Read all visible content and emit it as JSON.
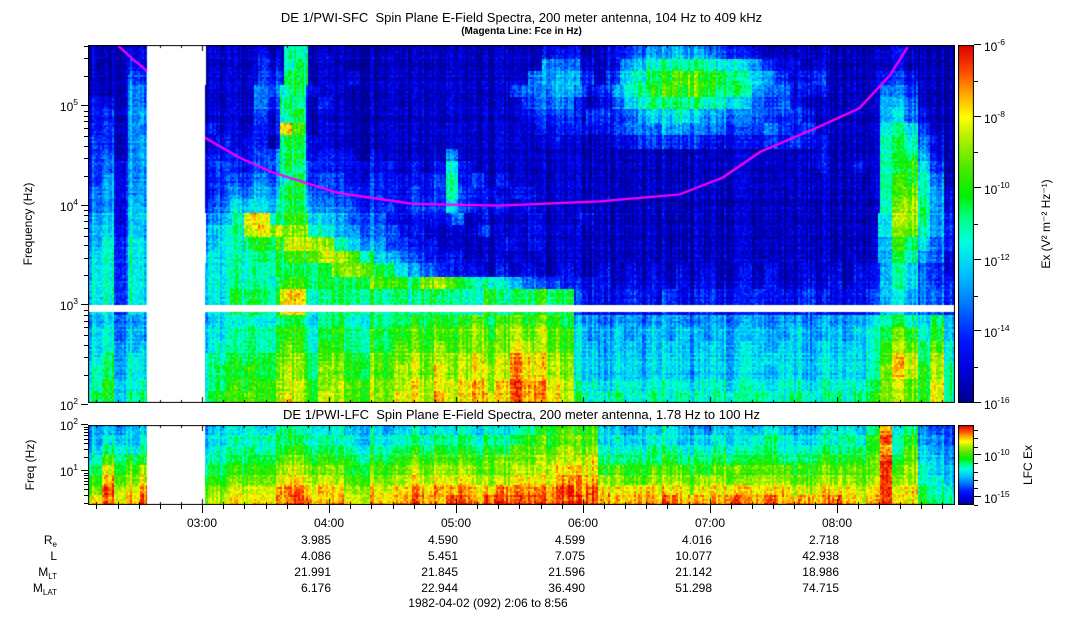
{
  "caption": "1982-04-02 (092) 2:06 to 8:56",
  "ephemeris": {
    "row_labels": [
      {
        "base": "R",
        "sub": "e"
      },
      {
        "base": "L",
        "sub": ""
      },
      {
        "base": "M",
        "sub": "LT"
      },
      {
        "base": "M",
        "sub": "LAT"
      }
    ],
    "columns": [
      {
        "time": "03:00",
        "values": [
          "",
          "",
          "",
          ""
        ]
      },
      {
        "time": "04:00",
        "values": [
          "3.985",
          "4.086",
          "21.991",
          "6.176"
        ]
      },
      {
        "time": "05:00",
        "values": [
          "4.590",
          "5.451",
          "21.845",
          "22.944"
        ]
      },
      {
        "time": "06:00",
        "values": [
          "4.599",
          "7.075",
          "21.596",
          "36.490"
        ]
      },
      {
        "time": "07:00",
        "values": [
          "4.016",
          "10.077",
          "21.142",
          "51.298"
        ]
      },
      {
        "time": "08:00",
        "values": [
          "2.718",
          "42.938",
          "18.986",
          "74.715"
        ]
      }
    ]
  },
  "colormap_stops": [
    [
      0.0,
      "#00008a"
    ],
    [
      0.1,
      "#0000e0"
    ],
    [
      0.18,
      "#0018ff"
    ],
    [
      0.27,
      "#0070ff"
    ],
    [
      0.36,
      "#00c0ff"
    ],
    [
      0.45,
      "#00ffe0"
    ],
    [
      0.52,
      "#00ff84"
    ],
    [
      0.58,
      "#00f000"
    ],
    [
      0.66,
      "#50e800"
    ],
    [
      0.74,
      "#b0f000"
    ],
    [
      0.8,
      "#ffff00"
    ],
    [
      0.87,
      "#ffa000"
    ],
    [
      0.93,
      "#ff4400"
    ],
    [
      1.0,
      "#e00000"
    ]
  ],
  "chart_data": [
    {
      "type": "heatmap",
      "title": "DE 1/PWI-SFC  Spin Plane E-Field Spectra, 200 meter antenna, 104 Hz to 409 kHz",
      "subtitle": "(Magenta Line: Fce in Hz)",
      "ylabel": "Frequency (Hz)",
      "xlabel": "",
      "x_range_hours": [
        2.1,
        8.9333
      ],
      "x_major_ticks_hours": [
        3,
        4,
        5,
        6,
        7,
        8
      ],
      "x_tick_labels": [
        "03:00",
        "04:00",
        "05:00",
        "06:00",
        "07:00",
        "08:00"
      ],
      "x_minor_step_minutes": 10,
      "y_log10_range_hz": [
        5.612,
        2.017
      ],
      "y_tick_exponents": [
        5,
        4,
        3,
        2
      ],
      "value_log10_range": [
        -6,
        -16
      ],
      "colorbar_label": "Ex (V² m⁻² Hz⁻¹)",
      "colorbar_tick_exponents": [
        -6,
        -8,
        -10,
        -12,
        -14,
        -16
      ],
      "colorbar_minor_exponents": [
        -7,
        -9,
        -11,
        -13,
        -15
      ],
      "data_gap_hours": [
        2.565,
        3.022
      ],
      "band_gap_log10_hz": [
        3.001,
        2.931
      ],
      "fce_line": {
        "legend": "Fce in Hz",
        "color": "#ff00ff",
        "segments_hour_hz": [
          [
            [
              2.34,
              400000
            ],
            [
              2.45,
              298000
            ],
            [
              2.565,
              224000
            ]
          ],
          [
            [
              3.022,
              48000
            ],
            [
              3.3,
              30000
            ],
            [
              3.55,
              21600
            ],
            [
              4.07,
              13400
            ],
            [
              4.66,
              10400
            ],
            [
              5.35,
              10000
            ],
            [
              6.13,
              11000
            ],
            [
              6.76,
              12900
            ],
            [
              7.1,
              19000
            ],
            [
              7.4,
              34700
            ],
            [
              7.87,
              62600
            ],
            [
              8.18,
              95000
            ],
            [
              8.42,
              203000
            ],
            [
              8.56,
              390000
            ]
          ]
        ]
      },
      "intensity_grid": {
        "encoding": "hex digit 0-15 maps log10 spectral density -16..-6 ; '.' = no data",
        "n_time_bins": 68,
        "n_freq_bins": 28,
        "rows": [
          "11122....111121771111111111111111112221123455655432211111111 1121111",
          "11132....111132781111111111111111115442125678888776532212111 1121111",
          "11143....1111338811121111111111111455531367 89aa99876532231111 232111",
          "11154....111144782111111111111111344554235789a9a98875442221111443111",
          "22154....111143871211111111111111134442124678888776543421111 11554111",
          "23155....111132781111111111111111123332333456676554443332111 11564211",
          "23154....211122c911111111111111111122222234445544433343231111 1676311",
          "33155....121221882111111111111111111211112233333222223232211 11787421",
          "34155....2222348822221211111411111111111111111111111111112111 1788521",
          "34255....2322348732222221212621111111111111111111111111112112 1789631",
          "35255....2333447833322322223723121111111111111111111111111111 1799741",
          "45255....234455884333332232373221221111111111111111111111111 1179a752",
          "45265....3466668854443332333632221211111111111111111111111111 17ab852",
          "56266....457cc899655444222224121112111211111111111111111111116bb853",
          "56265....567bcbaa7655443221111311121111111111111111111111111 16aa753",
          "57376....567899bbba76553322111112121111111111111111111111111 1598643",
          "67376....66778899abba86543222111111111111111111111111111111 11587542",
          "67376....6677788888abb98654322212121121121212121211212112121 22576432",
          "67376....6677779988889a998ab98776543322221212121211212112121 22576433",
          "67376....668888cc778888787887779788988322232232232223222322223565443",
          "67376....668888cc778888787887779788988322232232232223222322223565443",
          "56455....566767886787787898989a89a9a98554554555455455455455556787686",
          "67465....6678789978988989a9a9ab9abab a9655655656556556556556 5678a9796",
          "67566....677878a97998898aa9b9abaacbba96656656665665665665666679ba8a7",
          "68576....778889aa89a99a9abababcabdccba6656656665665666665666679cb8b7",
          "78576....7889 89ba8aa99a9bbacabcbbdccba665665666566566566566667acb9b8",
          "79677....78999abb9abaababcbcbcdbceddcb776776777677677677677778aba9c8",
          "89688....899a9acb9bbaabaccbdbcdcceddcb877877878778778778778789aba9c8"
        ]
      }
    },
    {
      "type": "heatmap",
      "title": "DE 1/PWI-LFC  Spin Plane E-Field Spectra, 200 meter antenna, 1.78 Hz to 100 Hz",
      "ylabel": "Freq (Hz)",
      "xlabel": "",
      "x_range_hours": [
        2.1,
        8.9333
      ],
      "x_major_ticks_hours": [
        3,
        4,
        5,
        6,
        7,
        8
      ],
      "x_tick_labels": [
        "03:00",
        "04:00",
        "05:00",
        "06:00",
        "07:00",
        "08:00"
      ],
      "x_minor_step_minutes": 10,
      "y_log10_range_hz": [
        2.0,
        0.25
      ],
      "y_tick_exponents": [
        2,
        1
      ],
      "value_log10_range": [
        -6.4,
        -16
      ],
      "colorbar_label": "LFC Ex",
      "colorbar_tick_exponents": [
        -10,
        -15
      ],
      "colorbar_minor_exponents": [
        -7,
        -8,
        -9,
        -11,
        -12,
        -13,
        -14,
        -16
      ],
      "data_gap_hours": [
        2.565,
        3.022
      ],
      "intensity_grid": {
        "encoding": "hex digit 0-15 maps log10 spectral density -16..-6.4 ; '.' = no data",
        "n_time_bins": 68,
        "n_freq_bins": 8,
        "rows": [
          "56566....5667678776766756767676767899a9a6656676556656765567768d68544",
          "57667....66777888777767678787878789a9aaa6766776667667876677879e79554",
          "68778....677878998888787898989898aaaabab7777887778778877788889d7a655",
          "7a899....778889aa99998989a9a9a9aaaabbbbc888889888988998889999ae8a665",
          "8c9ab....88999abbaaa99a9abababaaabbbcccc9a99aaa99aa9aaa99aaaaae9b766",
          "9dabc....99aaabccbbbaababcbcbcbbbccccdddbbaabbbabbaabbbaabbbabeab776",
          "aebcd....aabbbcddcccbbcbcdcdcdccdddddedecccccccbcccccccbbcccbcebc877",
          "cecde....bbcccddedcdccdcdeddeedeeeeeeeeedddddeddddeddeddddedcdecc988"
        ]
      }
    }
  ]
}
